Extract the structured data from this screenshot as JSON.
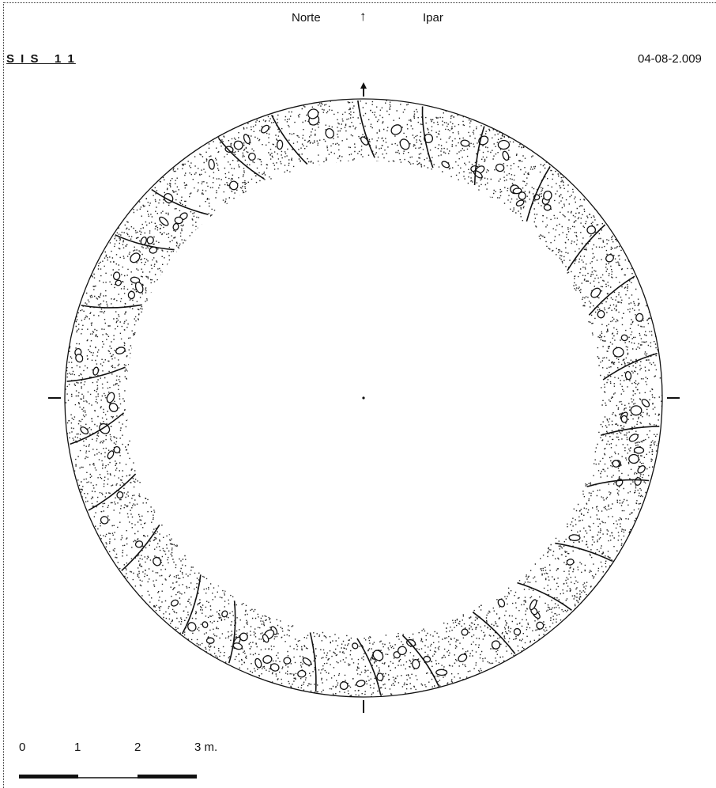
{
  "header": {
    "north_es": "Norte",
    "arrow": "↑",
    "north_eu": "Ipar",
    "site_code": "S I S   1 1",
    "date": "04-08-2.009"
  },
  "scale": {
    "ticks": [
      "0",
      "1",
      "2",
      "3 m."
    ]
  },
  "style": {
    "ink": "#111111",
    "paper": "#ffffff"
  }
}
